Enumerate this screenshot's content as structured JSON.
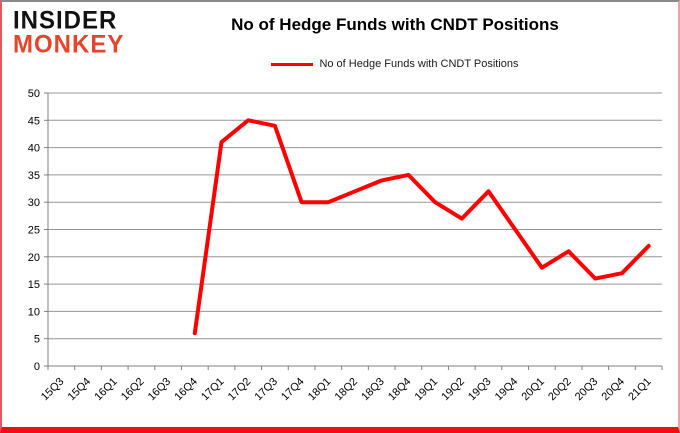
{
  "brand": {
    "line1": "INSIDER",
    "line2": "MONKEY",
    "accent_color": "#e8432b"
  },
  "header": {
    "title": "No of Hedge Funds with CNDT Positions"
  },
  "legend": {
    "label": "No of Hedge Funds with CNDT Positions",
    "line_color": "#FF0000"
  },
  "chart_data": {
    "type": "line",
    "title": "No of Hedge Funds with CNDT Positions",
    "categories": [
      "15Q3",
      "15Q4",
      "16Q1",
      "16Q2",
      "16Q3",
      "16Q4",
      "17Q1",
      "17Q2",
      "17Q3",
      "17Q4",
      "18Q1",
      "18Q2",
      "18Q3",
      "18Q4",
      "19Q1",
      "19Q2",
      "19Q3",
      "19Q4",
      "20Q1",
      "20Q2",
      "20Q3",
      "20Q4",
      "21Q1"
    ],
    "series": [
      {
        "name": "No of Hedge Funds with CNDT Positions",
        "values": [
          null,
          null,
          null,
          null,
          null,
          6,
          41,
          45,
          44,
          30,
          30,
          32,
          34,
          35,
          30,
          27,
          32,
          25,
          18,
          21,
          16,
          17,
          22
        ]
      }
    ],
    "ylim": [
      0,
      50
    ],
    "ytick_step": 5,
    "grid": true,
    "legend_position": "top",
    "line_color": "#FF0000",
    "line_width": 4,
    "grid_color": "#969696",
    "axis_color": "#808080",
    "tick_label_color": "#000000",
    "x_label_rotation": -45
  }
}
